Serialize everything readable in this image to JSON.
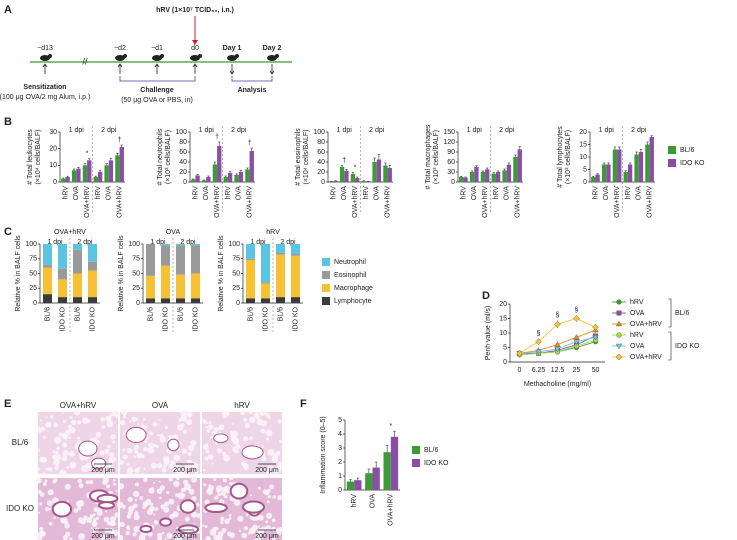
{
  "panel_labels": [
    "A",
    "B",
    "C",
    "D",
    "E",
    "F"
  ],
  "timeline": {
    "infection": "hRV (1×10⁷ TCID₅₀, i.n.)",
    "days": [
      "−d13",
      "−d2",
      "−d1",
      "d0",
      "Day 1",
      "Day 2"
    ],
    "sensitization": {
      "title": "Sensitization",
      "detail": "(100 μg OVA/2 mg Alum, i.p.)"
    },
    "challenge": {
      "title": "Challenge",
      "detail": "(50 μg OVA or PBS, in)"
    },
    "analysis": "Analysis"
  },
  "chart_data": [
    {
      "type": "bar",
      "ylabel": [
        "# Total leukocytes",
        "(×10⁴ cells/BALF)"
      ],
      "categories": [
        "hRV",
        "OVA",
        "OVA+hRV",
        "hRV",
        "OVA",
        "OVA+hRV"
      ],
      "groups": [
        "1 dpi",
        "2 dpi"
      ],
      "ylim": [
        0,
        30
      ],
      "yticks": [
        0,
        10,
        20,
        30
      ],
      "series": [
        {
          "color": "#3d9b35",
          "values": [
            2,
            7,
            10,
            3,
            10,
            16
          ],
          "errors": [
            0.4,
            0.8,
            1,
            0.5,
            1,
            1.2
          ]
        },
        {
          "color": "#8b4ea6",
          "values": [
            3,
            8,
            13,
            6,
            13,
            21
          ],
          "errors": [
            0.5,
            0.8,
            1,
            0.8,
            1,
            1.2
          ]
        }
      ],
      "annotations": [
        {
          "text": "*",
          "at": 2
        },
        {
          "text": "†",
          "at": 5
        }
      ]
    },
    {
      "type": "bar",
      "ylabel": [
        "# Total neutrophils",
        "(×10³ cells/BALF)"
      ],
      "categories": [
        "hRV",
        "OVA",
        "OVA+hRV",
        "hRV",
        "OVA",
        "OVA+hRV"
      ],
      "groups": [
        "1 dpi",
        "2 dpi"
      ],
      "ylim": [
        0,
        100
      ],
      "yticks": [
        0,
        20,
        40,
        60,
        80,
        100
      ],
      "series": [
        {
          "color": "#3d9b35",
          "values": [
            5,
            3,
            35,
            10,
            14,
            25
          ],
          "errors": [
            1,
            1,
            5,
            2,
            2,
            3
          ]
        },
        {
          "color": "#8b4ea6",
          "values": [
            13,
            10,
            72,
            18,
            20,
            62
          ],
          "errors": [
            2,
            2,
            8,
            3,
            3,
            6
          ]
        }
      ],
      "annotations": [
        {
          "text": "†",
          "at": 2
        },
        {
          "text": "†",
          "at": 5
        }
      ]
    },
    {
      "type": "bar",
      "ylabel": [
        "# Total eosinophils",
        "(×10⁴ cells/BALF)"
      ],
      "categories": [
        "hRV",
        "OVA",
        "OVA+hRV",
        "hRV",
        "OVA",
        "OVA+hRV"
      ],
      "groups": [
        "1 dpi",
        "2 dpi"
      ],
      "ylim": [
        0,
        100
      ],
      "yticks": [
        0,
        20,
        40,
        60,
        80,
        100
      ],
      "series": [
        {
          "color": "#3d9b35",
          "values": [
            1,
            30,
            16,
            2,
            40,
            33
          ],
          "errors": [
            0.5,
            3,
            3,
            0.5,
            8,
            5
          ]
        },
        {
          "color": "#8b4ea6",
          "values": [
            2,
            22,
            8,
            1,
            45,
            28
          ],
          "errors": [
            0.5,
            3,
            2,
            0.5,
            10,
            5
          ]
        }
      ],
      "annotations": [
        {
          "text": "†",
          "at": 1
        },
        {
          "text": "*",
          "at": 2
        }
      ]
    },
    {
      "type": "bar",
      "ylabel": [
        "# Total macrophages",
        "(×10³ cells/BALF)"
      ],
      "categories": [
        "hRV",
        "OVA",
        "OVA+hRV",
        "hRV",
        "OVA",
        "OVA+hRV"
      ],
      "groups": [
        "1 dpi",
        "2 dpi"
      ],
      "ylim": [
        0,
        150
      ],
      "yticks": [
        0,
        30,
        60,
        90,
        120,
        150
      ],
      "series": [
        {
          "color": "#3d9b35",
          "values": [
            15,
            30,
            30,
            25,
            35,
            75
          ],
          "errors": [
            2,
            3,
            3,
            3,
            4,
            6
          ]
        },
        {
          "color": "#8b4ea6",
          "values": [
            13,
            45,
            38,
            30,
            52,
            98
          ],
          "errors": [
            2,
            4,
            4,
            3,
            5,
            8
          ]
        }
      ]
    },
    {
      "type": "bar",
      "ylabel": [
        "# Total lymphocytes",
        "(×10³ cells/BALF)"
      ],
      "categories": [
        "hRV",
        "OVA",
        "OVA+hRV",
        "hRV",
        "OVA",
        "OVA+hRV"
      ],
      "groups": [
        "1 dpi",
        "2 dpi"
      ],
      "ylim": [
        0,
        20
      ],
      "yticks": [
        0,
        5,
        10,
        15,
        20
      ],
      "legend": "right",
      "series": [
        {
          "name": "BL/6",
          "color": "#3d9b35",
          "values": [
            2,
            7,
            13,
            4,
            11,
            15
          ],
          "errors": [
            0.3,
            0.6,
            1,
            0.5,
            1,
            1
          ]
        },
        {
          "name": "IDO KO",
          "color": "#8b4ea6",
          "values": [
            3,
            7,
            13,
            7,
            12,
            18
          ],
          "errors": [
            0.3,
            0.6,
            1,
            0.6,
            1,
            0.5
          ]
        }
      ]
    },
    {
      "type": "bar",
      "stacked": true,
      "title": "OVA+hRV",
      "ylabel": [
        "Relative % in BALF cells"
      ],
      "categories": [
        "BL/6",
        "IDO KO",
        "BL/6",
        "IDO KO"
      ],
      "groups": [
        "1 dpi",
        "2 dpi"
      ],
      "ylim": [
        0,
        100
      ],
      "yticks": [
        0,
        25,
        50,
        75,
        100
      ],
      "series": [
        {
          "color": "#5bc4e0",
          "values": [
            35,
            42,
            10,
            30
          ]
        },
        {
          "color": "#9a9a9a",
          "values": [
            5,
            18,
            40,
            15
          ]
        },
        {
          "color": "#f6c233",
          "values": [
            45,
            30,
            40,
            45
          ]
        },
        {
          "color": "#3b3b3b",
          "values": [
            15,
            10,
            10,
            10
          ]
        }
      ]
    },
    {
      "type": "bar",
      "stacked": true,
      "title": "OVA",
      "ylabel": [
        "Relative % in BALF cells"
      ],
      "categories": [
        "BL/6",
        "IDO KO",
        "BL/6",
        "IDO KO"
      ],
      "groups": [
        "1 dpi",
        "2 dpi"
      ],
      "ylim": [
        0,
        100
      ],
      "yticks": [
        0,
        25,
        50,
        75,
        100
      ],
      "series": [
        {
          "color": "#5bc4e0",
          "values": [
            0,
            2,
            2,
            2
          ]
        },
        {
          "color": "#9a9a9a",
          "values": [
            54,
            35,
            50,
            48
          ]
        },
        {
          "color": "#f6c233",
          "values": [
            38,
            55,
            40,
            42
          ]
        },
        {
          "color": "#3b3b3b",
          "values": [
            8,
            8,
            8,
            8
          ]
        }
      ]
    },
    {
      "type": "bar",
      "stacked": true,
      "title": "hRV",
      "ylabel": [
        "Relative % in BALF cells"
      ],
      "categories": [
        "BL/6",
        "IDO KO",
        "BL/6",
        "IDO KO"
      ],
      "groups": [
        "1 dpi",
        "2 dpi"
      ],
      "ylim": [
        0,
        100
      ],
      "yticks": [
        0,
        25,
        50,
        75,
        100
      ],
      "legend": "right",
      "series": [
        {
          "name": "Neutrophil",
          "color": "#5bc4e0",
          "values": [
            25,
            65,
            15,
            17
          ]
        },
        {
          "name": "Eosinophil",
          "color": "#9a9a9a",
          "values": [
            2,
            2,
            3,
            3
          ]
        },
        {
          "name": "Macrophage",
          "color": "#f6c233",
          "values": [
            65,
            25,
            72,
            70
          ]
        },
        {
          "name": "Lymphocyte",
          "color": "#3b3b3b",
          "values": [
            8,
            8,
            10,
            10
          ]
        }
      ]
    },
    {
      "type": "line",
      "ylabel": [
        "Penh value (ml/s)"
      ],
      "xlabel": "Methacholine (mg/ml)",
      "categories": [
        "0",
        "6.25",
        "12.5",
        "25",
        "50"
      ],
      "ylim": [
        0,
        20
      ],
      "yticks": [
        0,
        5,
        10,
        15,
        20
      ],
      "legend": "right",
      "series": [
        {
          "name": "hRV",
          "group": "BL/6",
          "color": "#3d9b35",
          "marker": "circle",
          "values": [
            2.5,
            3,
            3.5,
            5,
            7
          ],
          "errors": [
            0.3,
            0.4,
            0.4,
            0.5,
            0.6
          ]
        },
        {
          "name": "OVA",
          "group": "BL/6",
          "color": "#8b4ea6",
          "marker": "square",
          "values": [
            3,
            3,
            4,
            6,
            9
          ],
          "errors": [
            0.3,
            0.4,
            0.5,
            0.6,
            0.8
          ]
        },
        {
          "name": "OVA+hRV",
          "group": "BL/6",
          "color": "#e8891c",
          "marker": "triangle",
          "values": [
            3,
            4,
            6,
            8.5,
            11
          ],
          "errors": [
            0.3,
            0.5,
            0.6,
            0.8,
            1
          ]
        },
        {
          "name": "hRV",
          "group": "IDO KO",
          "color": "#a6d84a",
          "marker": "circle",
          "values": [
            2.5,
            3,
            3.5,
            5.5,
            7.5
          ],
          "errors": [
            0.3,
            0.4,
            0.4,
            0.5,
            0.6
          ]
        },
        {
          "name": "OVA",
          "group": "IDO KO",
          "color": "#6cc6e0",
          "marker": "triangle-down",
          "values": [
            3,
            3.5,
            4.5,
            7,
            8.5
          ],
          "errors": [
            0.3,
            0.4,
            0.5,
            0.6,
            0.8
          ]
        },
        {
          "name": "OVA+hRV",
          "group": "IDO KO",
          "color": "#f6c233",
          "marker": "diamond",
          "values": [
            3,
            7,
            13,
            15,
            12
          ],
          "errors": [
            0.4,
            1,
            1.5,
            1.2,
            1
          ]
        }
      ],
      "annotations": [
        {
          "text": "§",
          "at": 1
        },
        {
          "text": "§",
          "at": 2
        },
        {
          "text": "§",
          "at": 3
        }
      ]
    },
    {
      "type": "bar",
      "ylabel": [
        "Inflammation score (0–5)"
      ],
      "categories": [
        "hRV",
        "OVA",
        "OVA+hRV"
      ],
      "ylim": [
        0,
        5
      ],
      "yticks": [
        0,
        1,
        2,
        3,
        4,
        5
      ],
      "legend": "right",
      "series": [
        {
          "name": "BL/6",
          "color": "#3d9b35",
          "values": [
            0.6,
            1.2,
            2.7
          ],
          "errors": [
            0.15,
            0.3,
            0.5
          ]
        },
        {
          "name": "IDO KO",
          "color": "#8b4ea6",
          "values": [
            0.7,
            1.6,
            3.8
          ],
          "errors": [
            0.15,
            0.4,
            0.4
          ]
        }
      ],
      "annotations": [
        {
          "text": "*",
          "at": 2
        }
      ]
    }
  ],
  "histology": {
    "columns": [
      "OVA+hRV",
      "OVA",
      "hRV"
    ],
    "rows": [
      "BL/6",
      "IDO KO"
    ],
    "scale_bar": "200 μm"
  }
}
